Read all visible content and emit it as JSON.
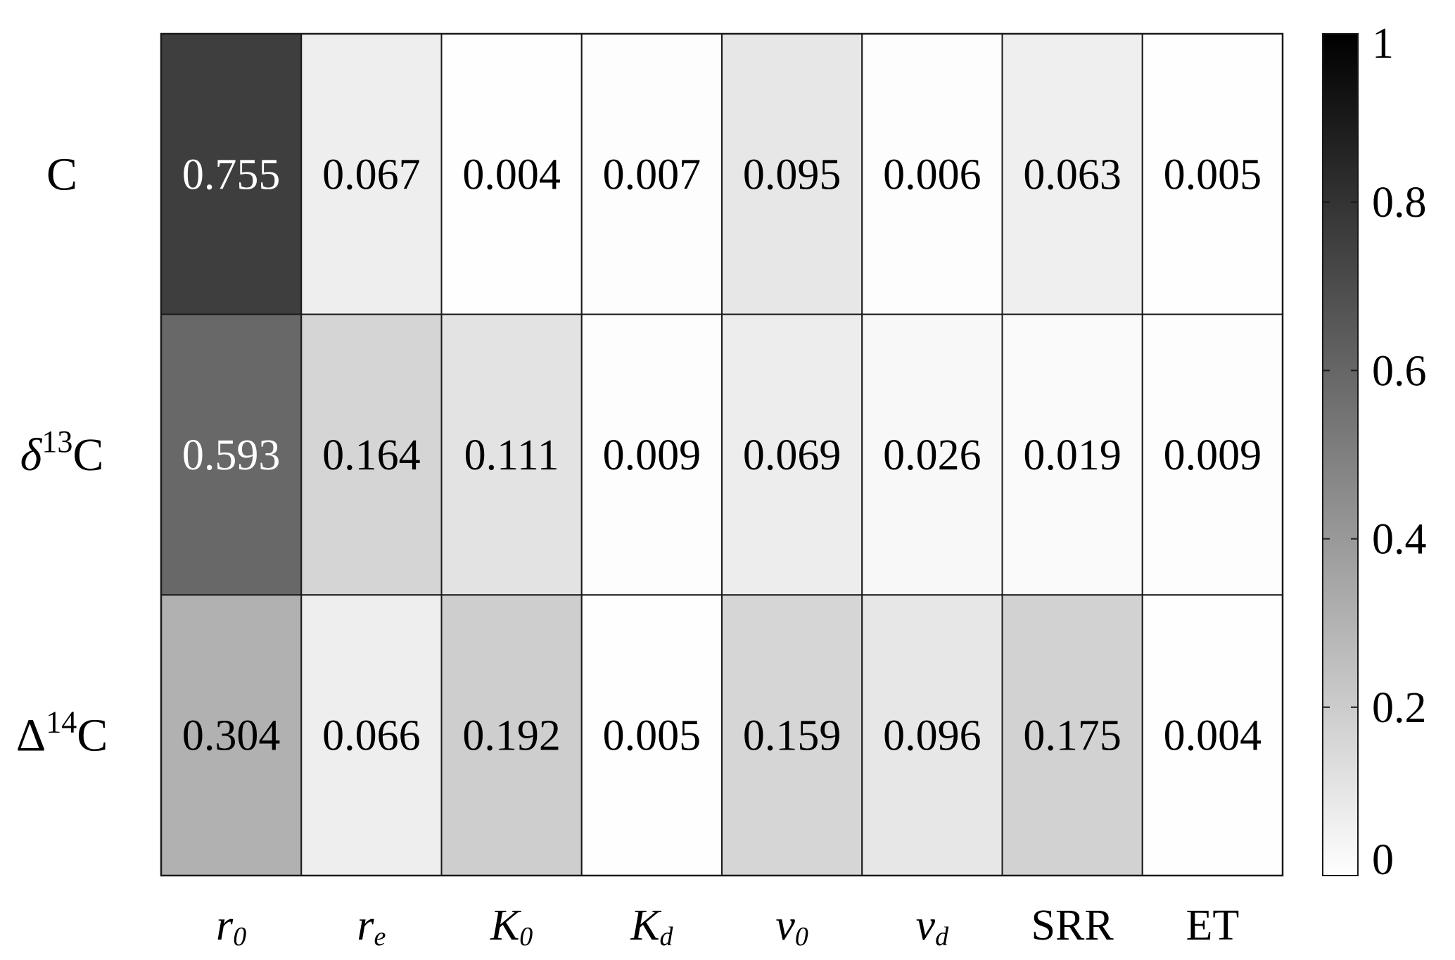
{
  "chart_data": {
    "type": "heatmap",
    "rows": [
      {
        "main": "C",
        "prefix": "",
        "sup": ""
      },
      {
        "main": "C",
        "prefix": "δ",
        "sup": "13"
      },
      {
        "main": "C",
        "prefix": "Δ",
        "sup": "14"
      }
    ],
    "columns": [
      {
        "main": "r",
        "sub": "0",
        "italic": true
      },
      {
        "main": "r",
        "sub": "e",
        "italic": true
      },
      {
        "main": "K",
        "sub": "0",
        "italic": true
      },
      {
        "main": "K",
        "sub": "d",
        "italic": true
      },
      {
        "main": "v",
        "sub": "0",
        "italic": true
      },
      {
        "main": "v",
        "sub": "d",
        "italic": true
      },
      {
        "main": "SRR",
        "sub": "",
        "italic": false
      },
      {
        "main": "ET",
        "sub": "",
        "italic": false
      }
    ],
    "values": [
      [
        0.755,
        0.067,
        0.004,
        0.007,
        0.095,
        0.006,
        0.063,
        0.005
      ],
      [
        0.593,
        0.164,
        0.111,
        0.009,
        0.069,
        0.026,
        0.019,
        0.009
      ],
      [
        0.304,
        0.066,
        0.192,
        0.005,
        0.159,
        0.096,
        0.175,
        0.004
      ]
    ],
    "value_labels": [
      [
        "0.755",
        "0.067",
        "0.004",
        "0.007",
        "0.095",
        "0.006",
        "0.063",
        "0.005"
      ],
      [
        "0.593",
        "0.164",
        "0.111",
        "0.009",
        "0.069",
        "0.026",
        "0.019",
        "0.009"
      ],
      [
        "0.304",
        "0.066",
        "0.192",
        "0.005",
        "0.159",
        "0.096",
        "0.175",
        "0.004"
      ]
    ],
    "colorbar": {
      "range": [
        0,
        1
      ],
      "ticks": [
        0,
        0.2,
        0.4,
        0.6,
        0.8,
        1
      ],
      "tick_labels": [
        "0",
        "0.2",
        "0.4",
        "0.6",
        "0.8",
        "1"
      ],
      "low_color": "#ffffff",
      "high_color": "#000000",
      "placement": "right"
    },
    "colormap": "gray-reversed",
    "label_colors": {
      "dark": "#000000",
      "light": "#ffffff"
    }
  }
}
